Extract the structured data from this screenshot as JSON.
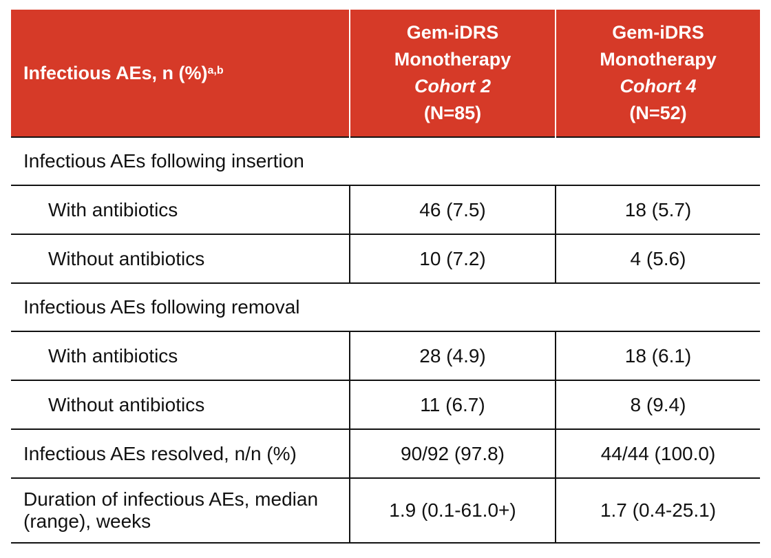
{
  "table": {
    "header": {
      "label": "Infectious AEs, n (%)",
      "label_sup": "a,b",
      "columns": [
        {
          "lines": [
            "Gem-iDRS",
            "Monotherapy"
          ],
          "cohort": "Cohort 2",
          "n": "(N=85)"
        },
        {
          "lines": [
            "Gem-iDRS",
            "Monotherapy"
          ],
          "cohort": "Cohort 4",
          "n": "(N=52)"
        }
      ]
    },
    "body": [
      {
        "label": "Infectious AEs following insertion",
        "rows": [
          {
            "label": "With antibiotics",
            "cells": [
              "46 (7.5)",
              "18 (5.7)"
            ]
          },
          {
            "label": "Without antibiotics",
            "cells": [
              "10 (7.2)",
              "4 (5.6)"
            ]
          }
        ]
      },
      {
        "label": "Infectious AEs following removal",
        "rows": [
          {
            "label": "With antibiotics",
            "cells": [
              "28 (4.9)",
              "18 (6.1)"
            ]
          },
          {
            "label": "Without antibiotics",
            "cells": [
              "11 (6.7)",
              "8 (9.4)"
            ]
          }
        ]
      },
      {
        "label": "Infectious AEs resolved, n/n (%)",
        "cells": [
          "90/92 (97.8)",
          "44/44 (100.0)"
        ]
      },
      {
        "label": "Duration of infectious AEs, median (range), weeks",
        "cells": [
          "1.9 (0.1-61.0+)",
          "1.7 (0.4-25.1)"
        ]
      }
    ]
  }
}
